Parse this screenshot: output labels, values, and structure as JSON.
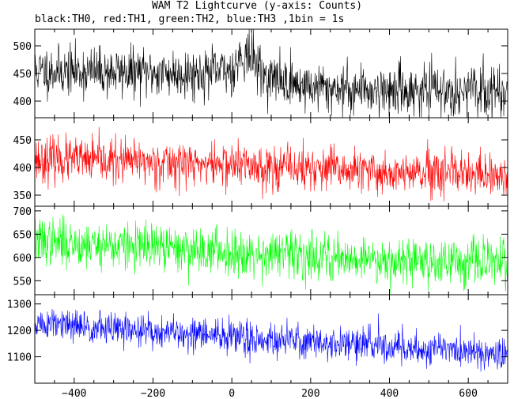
{
  "title": "WAM T2 Lightcurve (y-axis: Counts)",
  "subtitle": "black:TH0, red:TH1, green:TH2, blue:TH3 ,1bin = 1s",
  "chart_data": {
    "type": "line",
    "xlim": [
      -500,
      700
    ],
    "xticks": [
      -400,
      -200,
      0,
      200,
      400,
      600
    ],
    "x_step": 1,
    "grid": false,
    "panels": [
      {
        "name": "TH0",
        "color": "#000000",
        "ylim": [
          370,
          530
        ],
        "yticks": [
          400,
          450,
          500
        ],
        "noise": 22,
        "seed": 11,
        "trend_x": [
          -500,
          -100,
          0,
          20,
          40,
          60,
          80,
          200,
          400,
          700
        ],
        "trend_y": [
          455,
          450,
          455,
          480,
          485,
          470,
          445,
          425,
          420,
          418
        ]
      },
      {
        "name": "TH1",
        "color": "#ff0000",
        "ylim": [
          330,
          490
        ],
        "yticks": [
          350,
          400,
          450
        ],
        "noise": 20,
        "seed": 23,
        "trend_x": [
          -500,
          0,
          400,
          700
        ],
        "trend_y": [
          415,
          405,
          390,
          383
        ]
      },
      {
        "name": "TH2",
        "color": "#00ff00",
        "ylim": [
          520,
          710
        ],
        "yticks": [
          550,
          600,
          650,
          700
        ],
        "noise": 25,
        "seed": 37,
        "trend_x": [
          -500,
          0,
          400,
          700
        ],
        "trend_y": [
          635,
          612,
          595,
          588
        ]
      },
      {
        "name": "TH3",
        "color": "#0000ff",
        "ylim": [
          1000,
          1335
        ],
        "yticks": [
          1100,
          1200,
          1300
        ],
        "noise": 32,
        "seed": 51,
        "trend_x": [
          -500,
          0,
          400,
          700
        ],
        "trend_y": [
          1225,
          1175,
          1140,
          1110
        ]
      }
    ]
  }
}
